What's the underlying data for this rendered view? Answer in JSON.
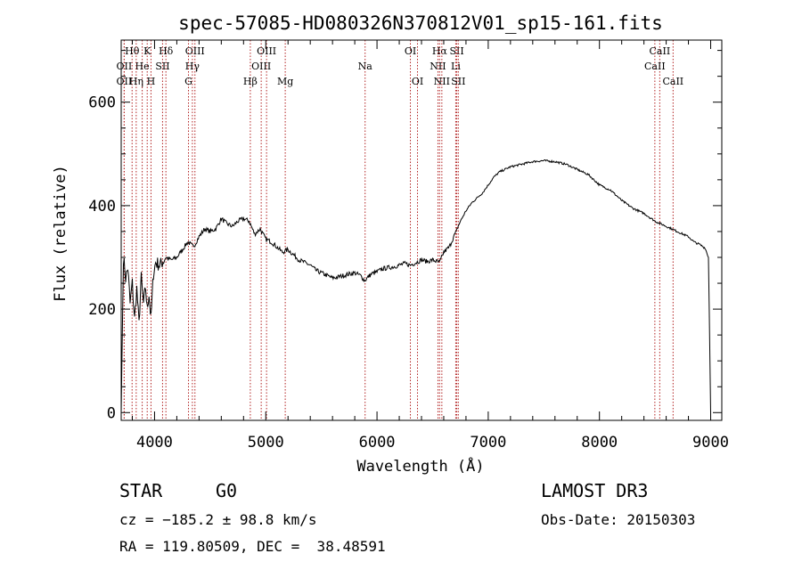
{
  "chart_data": {
    "type": "line",
    "title": "spec-57085-HD080326N370812V01_sp15-161.fits",
    "xlabel": "Wavelength (Å)",
    "ylabel": "Flux (relative)",
    "xlim": [
      3700,
      9100
    ],
    "ylim": [
      -15,
      720
    ],
    "xticks": [
      4000,
      5000,
      6000,
      7000,
      8000,
      9000
    ],
    "xtick_labels": [
      "4000",
      "5000",
      "6000",
      "7000",
      "8000",
      "9000"
    ],
    "yticks": [
      0,
      200,
      400,
      600
    ],
    "ytick_labels": [
      "0",
      "200",
      "400",
      "600"
    ],
    "grid": false,
    "series": [
      {
        "name": "spectrum",
        "x": [
          3700,
          3720,
          3740,
          3760,
          3780,
          3800,
          3820,
          3840,
          3860,
          3880,
          3900,
          3920,
          3933,
          3950,
          3968,
          3990,
          4010,
          4050,
          4100,
          4150,
          4200,
          4250,
          4300,
          4350,
          4400,
          4450,
          4500,
          4550,
          4600,
          4650,
          4700,
          4750,
          4800,
          4850,
          4900,
          4950,
          5000,
          5050,
          5100,
          5150,
          5200,
          5250,
          5300,
          5350,
          5400,
          5450,
          5500,
          5550,
          5600,
          5650,
          5700,
          5750,
          5800,
          5850,
          5890,
          5920,
          5950,
          6000,
          6050,
          6100,
          6150,
          6200,
          6250,
          6300,
          6350,
          6400,
          6450,
          6500,
          6563,
          6600,
          6650,
          6700,
          6750,
          6800,
          6850,
          6900,
          6950,
          7000,
          7050,
          7100,
          7150,
          7200,
          7300,
          7400,
          7500,
          7600,
          7700,
          7800,
          7900,
          8000,
          8100,
          8200,
          8300,
          8400,
          8500,
          8600,
          8700,
          8800,
          8850,
          8900,
          8950,
          8980,
          9000
        ],
        "y": [
          0,
          300,
          260,
          280,
          210,
          250,
          180,
          240,
          170,
          260,
          210,
          240,
          200,
          230,
          180,
          270,
          290,
          285,
          300,
          295,
          300,
          315,
          330,
          320,
          340,
          355,
          350,
          355,
          375,
          365,
          360,
          370,
          375,
          370,
          345,
          355,
          335,
          330,
          320,
          310,
          315,
          305,
          295,
          290,
          285,
          275,
          270,
          265,
          260,
          262,
          265,
          268,
          270,
          265,
          255,
          262,
          268,
          272,
          278,
          280,
          282,
          285,
          288,
          285,
          290,
          295,
          292,
          295,
          290,
          310,
          320,
          345,
          370,
          390,
          405,
          415,
          425,
          440,
          455,
          465,
          470,
          475,
          480,
          485,
          487,
          485,
          480,
          470,
          460,
          440,
          430,
          410,
          395,
          385,
          370,
          360,
          350,
          340,
          330,
          325,
          318,
          300,
          0
        ]
      }
    ],
    "line_markers": [
      {
        "label": "Hθ",
        "x": 3798,
        "row": 1
      },
      {
        "label": "K",
        "x": 3934,
        "row": 1
      },
      {
        "label": "Hδ",
        "x": 4102,
        "row": 1
      },
      {
        "label": "OIII",
        "x": 4363,
        "row": 1
      },
      {
        "label": "OIII",
        "x": 5007,
        "row": 1
      },
      {
        "label": "OI",
        "x": 6300,
        "row": 1
      },
      {
        "label": "Hα",
        "x": 6563,
        "row": 1
      },
      {
        "label": "SII",
        "x": 6717,
        "row": 1
      },
      {
        "label": "CaII",
        "x": 8542,
        "row": 1
      },
      {
        "label": "OII",
        "x": 3727,
        "row": 2
      },
      {
        "label": "He",
        "x": 3889,
        "row": 2
      },
      {
        "label": "SII",
        "x": 4072,
        "row": 2
      },
      {
        "label": "Hγ",
        "x": 4340,
        "row": 2
      },
      {
        "label": "OIII",
        "x": 4959,
        "row": 2
      },
      {
        "label": "Na",
        "x": 5893,
        "row": 2
      },
      {
        "label": "NII",
        "x": 6548,
        "row": 2
      },
      {
        "label": "Li",
        "x": 6708,
        "row": 2
      },
      {
        "label": "CaII",
        "x": 8498,
        "row": 2
      },
      {
        "label": "OII",
        "x": 3727,
        "row": 3
      },
      {
        "label": "Hη",
        "x": 3835,
        "row": 3
      },
      {
        "label": "H",
        "x": 3968,
        "row": 3
      },
      {
        "label": "G",
        "x": 4305,
        "row": 3
      },
      {
        "label": "Hβ",
        "x": 4861,
        "row": 3
      },
      {
        "label": "Mg",
        "x": 5175,
        "row": 3
      },
      {
        "label": "OI",
        "x": 6364,
        "row": 3
      },
      {
        "label": "NII",
        "x": 6583,
        "row": 3
      },
      {
        "label": "SII",
        "x": 6731,
        "row": 3
      },
      {
        "label": "CaII",
        "x": 8662,
        "row": 3
      }
    ]
  },
  "info": {
    "object_class": "STAR",
    "subclass": "G0",
    "survey": "LAMOST DR3",
    "cz": "cz = −185.2 ± 98.8 km/s",
    "obs_date": "Obs-Date: 20150303",
    "coords": "RA = 119.80509, DEC =  38.48591"
  },
  "colors": {
    "spectrum": "#000000",
    "marker_line": "#b22222",
    "axes": "#000000",
    "background": "#ffffff"
  }
}
